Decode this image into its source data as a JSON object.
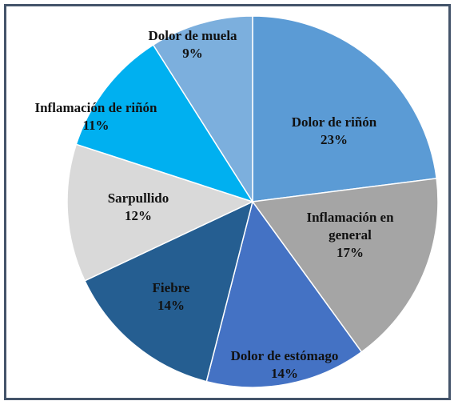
{
  "chart_data": {
    "type": "pie",
    "title": "",
    "start_angle_deg": 0,
    "direction": "clockwise",
    "slices": [
      {
        "label_lines": [
          "Dolor de riñón"
        ],
        "value": 23,
        "pct_text": "23%",
        "color": "#5b9bd5"
      },
      {
        "label_lines": [
          "Inflamación en",
          "general"
        ],
        "value": 17,
        "pct_text": "17%",
        "color": "#a5a5a5"
      },
      {
        "label_lines": [
          "Dolor de estómago"
        ],
        "value": 14,
        "pct_text": "14%",
        "color": "#4472c4"
      },
      {
        "label_lines": [
          "Fiebre"
        ],
        "value": 14,
        "pct_text": "14%",
        "color": "#255e91"
      },
      {
        "label_lines": [
          "Sarpullido"
        ],
        "value": 12,
        "pct_text": "12%",
        "color": "#d9d9d9"
      },
      {
        "label_lines": [
          "Inflamación de riñón"
        ],
        "value": 11,
        "pct_text": "11%",
        "color": "#00b0f0"
      },
      {
        "label_lines": [
          "Dolor de muela"
        ],
        "value": 9,
        "pct_text": "9%",
        "color": "#7cafdd"
      }
    ]
  }
}
